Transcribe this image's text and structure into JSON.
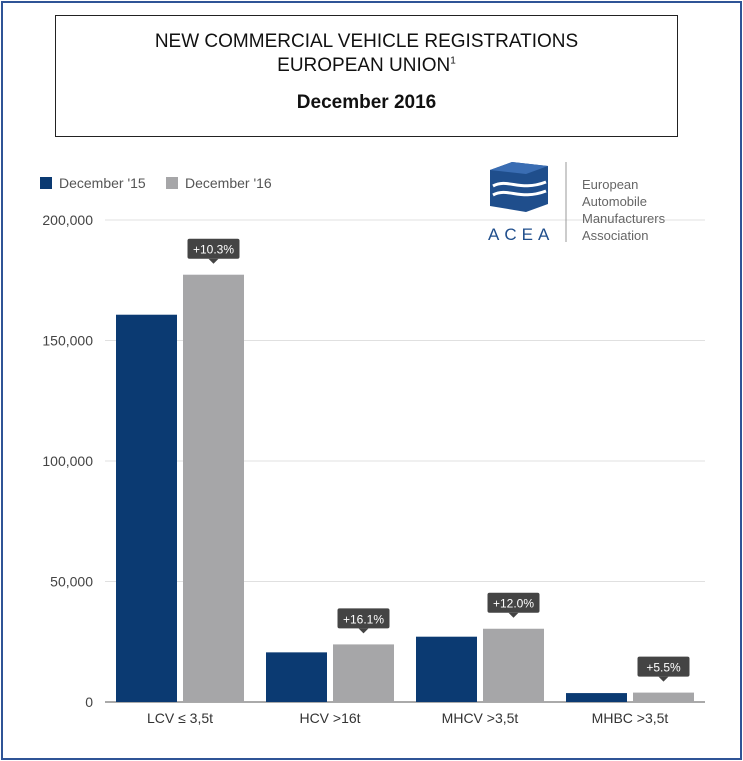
{
  "title": {
    "line1": "NEW COMMERCIAL VEHICLE REGISTRATIONS",
    "line2": "EUROPEAN UNION",
    "footnote_mark": "1",
    "period": "December 2016"
  },
  "logo": {
    "icon": "acea-cube-icon",
    "wordmark": "ACEA",
    "name_lines": [
      "European",
      "Automobile",
      "Manufacturers",
      "Association"
    ],
    "color": "#1f4e8c"
  },
  "chart_data": {
    "type": "bar",
    "categories": [
      "LCV ≤ 3,5t",
      "HCV >16t",
      "MHCV >3,5t",
      "MHBC >3,5t"
    ],
    "series": [
      {
        "name": "December '15",
        "color": "#0b3a72",
        "values": [
          160700,
          20600,
          27100,
          3700
        ]
      },
      {
        "name": "December '16",
        "color": "#a6a6a8",
        "values": [
          177300,
          23900,
          30400,
          3900
        ]
      }
    ],
    "change_labels": [
      "+10.3%",
      "+16.1%",
      "+12.0%",
      "+5.5%"
    ],
    "y_ticks": [
      "0",
      "50,000",
      "100,000",
      "150,000",
      "200,000"
    ],
    "y_tick_values": [
      0,
      50000,
      100000,
      150000,
      200000
    ],
    "ylim": [
      0,
      200000
    ],
    "grid": true,
    "legend_position": "top-left"
  }
}
